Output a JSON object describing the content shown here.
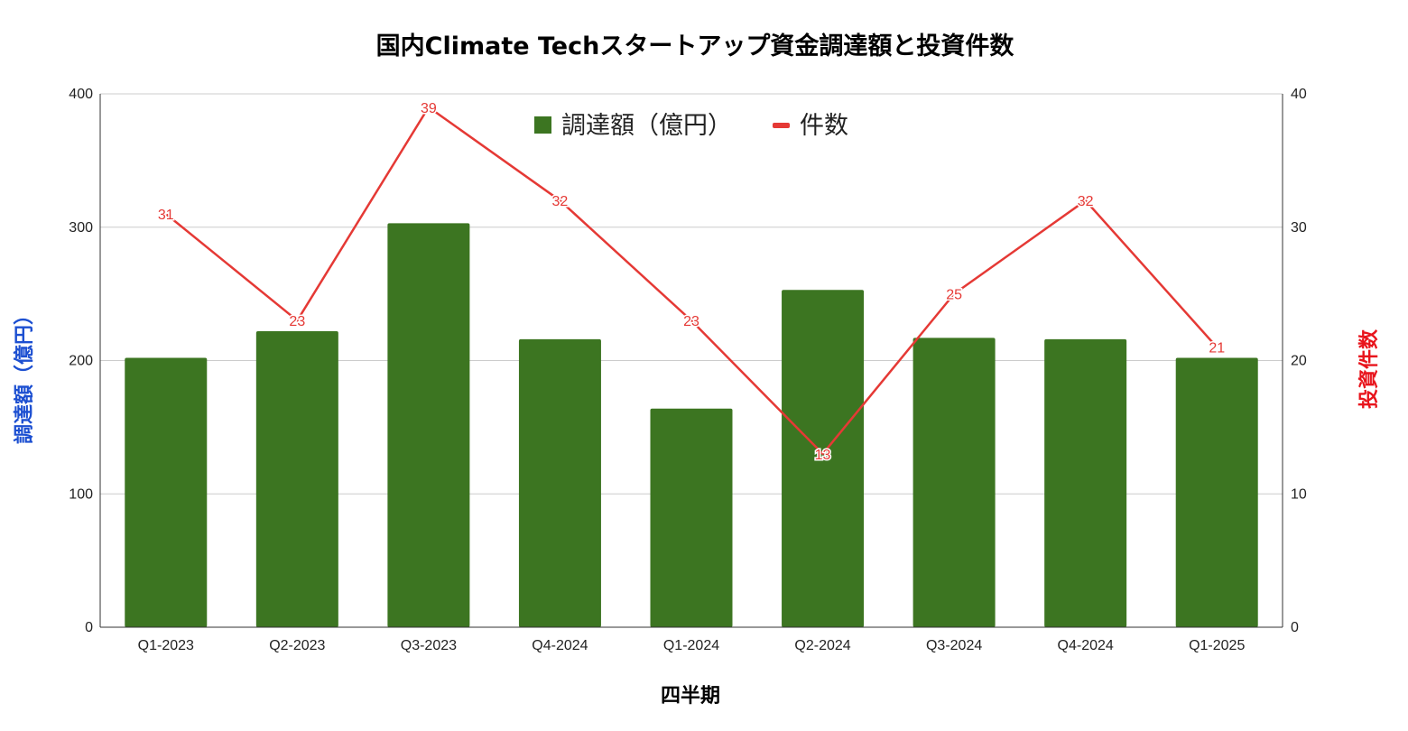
{
  "chart_data": {
    "type": "bar",
    "title": "国内Climate Techスタートアップ資金調達額と投資件数",
    "xlabel": "四半期",
    "ylabel_left": "調達額（億円）",
    "ylabel_right": "投資件数",
    "categories": [
      "Q1-2023",
      "Q2-2023",
      "Q3-2023",
      "Q4-2024",
      "Q1-2024",
      "Q2-2024",
      "Q3-2024",
      "Q4-2024",
      "Q1-2025"
    ],
    "series": [
      {
        "name": "調達額（億円）",
        "type": "bar",
        "axis": "left",
        "color": "#3c7521",
        "values": [
          202,
          222,
          303,
          216,
          164,
          253,
          217,
          216,
          202
        ]
      },
      {
        "name": "件数",
        "type": "line",
        "axis": "right",
        "color": "#e53935",
        "values": [
          31,
          23,
          39,
          32,
          23,
          13,
          25,
          32,
          21
        ]
      }
    ],
    "ylim_left": [
      0,
      400
    ],
    "ylim_right": [
      0,
      40
    ],
    "yticks_left": [
      "0",
      "100",
      "200",
      "300",
      "400"
    ],
    "yticks_right": [
      "0",
      "10",
      "20",
      "30",
      "40"
    ],
    "grid": true,
    "legend_position": "top-center",
    "left_axis_title_color": "#1c4fd1",
    "right_axis_title_color": "#e8141c"
  }
}
